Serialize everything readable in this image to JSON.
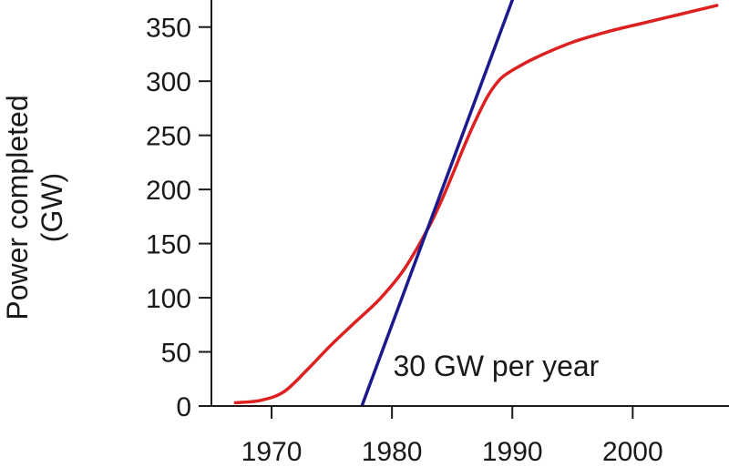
{
  "chart_data": {
    "type": "line",
    "title": "",
    "xlabel": "",
    "ylabel": [
      "Power completed",
      "(GW)"
    ],
    "xlim": [
      1965,
      2008
    ],
    "ylim": [
      0,
      375
    ],
    "xticks": [
      1970,
      1980,
      1990,
      2000
    ],
    "yticks": [
      0,
      50,
      100,
      150,
      200,
      250,
      300,
      350
    ],
    "grid": false,
    "series": [
      {
        "color": "#dd2020",
        "x": [
          1967,
          1969,
          1971,
          1973,
          1975,
          1977,
          1979,
          1981,
          1983,
          1984,
          1985,
          1986,
          1987,
          1988,
          1989,
          1990,
          1992,
          1995,
          1998,
          2001,
          2004,
          2007
        ],
        "y": [
          3,
          5,
          13,
          34,
          57,
          78,
          99,
          126,
          164,
          187,
          213,
          240,
          265,
          287,
          302,
          310,
          322,
          336,
          346,
          354,
          362,
          370
        ]
      },
      {
        "color": "#1a1a8c",
        "x": [
          1977.5,
          1990.1
        ],
        "y": [
          0,
          378
        ]
      }
    ],
    "annotations": [
      {
        "text": "30 GW per year",
        "x": 1980.1,
        "y": 38
      }
    ]
  }
}
